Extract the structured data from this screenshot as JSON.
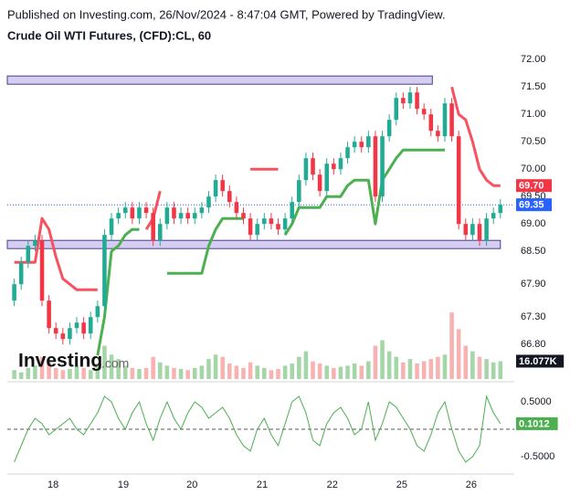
{
  "header": {
    "published": "Published on Investing.com, 26/Nov/2024 - 8:47:04 GMT, Powered by TradingView.",
    "title": "Crude Oil WTI Futures, (CFD):CL, 60"
  },
  "logo": {
    "main": "Investing",
    "suffix": ".com"
  },
  "chart_data": [
    {
      "type": "candlestick",
      "categories": [
        null,
        null,
        null,
        null,
        null,
        null,
        null,
        null,
        null,
        null,
        null,
        null,
        null,
        null,
        null,
        null,
        null,
        null,
        null,
        null,
        null,
        null,
        null,
        null,
        null,
        null,
        null,
        null,
        null,
        null,
        null,
        null,
        null,
        null,
        null,
        null,
        null,
        null,
        null,
        null,
        null,
        null,
        null,
        null,
        null,
        null,
        null,
        null,
        null,
        null,
        null,
        null,
        null,
        null,
        null,
        null,
        null,
        null,
        null,
        null,
        null,
        null,
        null,
        null,
        null,
        null,
        null,
        null,
        null,
        null,
        null
      ],
      "xlim": [
        -1,
        72
      ],
      "xticks": [
        {
          "value": 5.6,
          "label": "18"
        },
        {
          "value": 15.7,
          "label": "19"
        },
        {
          "value": 25.6,
          "label": "20"
        },
        {
          "value": 35.7,
          "label": "21"
        },
        {
          "value": 45.8,
          "label": "22"
        },
        {
          "value": 55.8,
          "label": "25"
        },
        {
          "value": 65.8,
          "label": "26"
        }
      ],
      "ylim": [
        66.17,
        72.17
      ],
      "yticks": [
        {
          "value": 72.0,
          "label": "72.00"
        },
        {
          "value": 71.5,
          "label": "71.50"
        },
        {
          "value": 71.0,
          "label": "71.00"
        },
        {
          "value": 70.5,
          "label": "70.50"
        },
        {
          "value": 70.0,
          "label": "70.00"
        },
        {
          "value": 69.5,
          "label": "69.50"
        },
        {
          "value": 69.0,
          "label": "69.00"
        },
        {
          "value": 68.5,
          "label": "68.50"
        },
        {
          "value": 67.9,
          "label": "67.90"
        },
        {
          "value": 67.3,
          "label": "67.30"
        },
        {
          "value": 66.8,
          "label": "66.80"
        }
      ],
      "open": [
        67.6,
        67.9,
        68.3,
        68.6,
        68.7,
        67.6,
        67.1,
        67.0,
        66.9,
        67.1,
        67.2,
        67.0,
        67.3,
        67.5,
        68.8,
        69.1,
        69.2,
        69.3,
        69.1,
        69.3,
        69.2,
        68.7,
        69.0,
        69.3,
        69.1,
        69.2,
        69.1,
        69.2,
        69.3,
        69.5,
        69.8,
        69.6,
        69.4,
        69.2,
        69.1,
        68.8,
        69.0,
        69.1,
        69.0,
        68.9,
        69.1,
        69.4,
        69.8,
        70.2,
        69.9,
        69.6,
        70.1,
        70.0,
        70.2,
        70.4,
        70.5,
        70.4,
        70.6,
        69.5,
        70.6,
        70.9,
        71.3,
        71.2,
        71.4,
        71.1,
        71.0,
        70.7,
        70.6,
        71.2,
        70.6,
        69.0,
        68.8,
        69.0,
        68.7,
        69.1,
        69.2
      ],
      "high": [
        68.0,
        68.4,
        68.7,
        68.8,
        68.8,
        67.7,
        67.2,
        67.1,
        67.2,
        67.3,
        67.3,
        67.4,
        67.6,
        68.9,
        69.2,
        69.3,
        69.4,
        69.4,
        69.4,
        69.4,
        69.3,
        69.1,
        69.4,
        69.4,
        69.3,
        69.3,
        69.3,
        69.4,
        69.6,
        69.9,
        69.9,
        69.7,
        69.5,
        69.3,
        69.2,
        69.1,
        69.2,
        69.2,
        69.1,
        69.2,
        69.5,
        69.9,
        70.3,
        70.3,
        70.0,
        70.2,
        70.2,
        70.3,
        70.5,
        70.6,
        70.6,
        70.7,
        70.7,
        70.7,
        71.0,
        71.4,
        71.4,
        71.5,
        71.5,
        71.2,
        71.1,
        70.8,
        71.3,
        71.3,
        70.7,
        69.1,
        69.1,
        69.1,
        69.2,
        69.3,
        69.45
      ],
      "low": [
        67.5,
        67.8,
        68.2,
        68.5,
        67.5,
        67.0,
        66.9,
        66.8,
        66.8,
        67.0,
        66.9,
        66.9,
        67.2,
        67.4,
        68.7,
        69.0,
        69.1,
        69.0,
        69.0,
        69.1,
        68.6,
        68.6,
        68.9,
        69.0,
        69.0,
        69.0,
        69.0,
        69.1,
        69.2,
        69.4,
        69.5,
        69.3,
        69.1,
        69.0,
        68.7,
        68.7,
        68.9,
        68.9,
        68.8,
        68.8,
        69.0,
        69.3,
        69.7,
        69.8,
        69.5,
        69.5,
        69.9,
        69.9,
        70.1,
        70.3,
        70.3,
        70.3,
        69.4,
        69.4,
        70.5,
        70.8,
        71.1,
        71.1,
        71.0,
        70.9,
        70.6,
        70.5,
        70.5,
        70.5,
        68.9,
        68.7,
        68.7,
        68.6,
        68.6,
        69.0,
        69.1
      ],
      "close": [
        67.9,
        68.3,
        68.6,
        68.7,
        67.6,
        67.1,
        67.0,
        66.9,
        67.1,
        67.2,
        67.0,
        67.3,
        67.5,
        68.8,
        69.1,
        69.2,
        69.3,
        69.1,
        69.3,
        69.2,
        68.7,
        69.0,
        69.3,
        69.1,
        69.2,
        69.1,
        69.2,
        69.3,
        69.5,
        69.8,
        69.6,
        69.4,
        69.2,
        69.1,
        68.8,
        69.0,
        69.1,
        69.0,
        68.9,
        69.1,
        69.4,
        69.8,
        70.2,
        69.9,
        69.6,
        70.1,
        70.0,
        70.2,
        70.4,
        70.5,
        70.4,
        70.6,
        69.5,
        70.6,
        70.9,
        71.3,
        71.2,
        71.4,
        71.1,
        71.0,
        70.7,
        70.6,
        71.2,
        70.6,
        69.0,
        68.8,
        69.0,
        68.7,
        69.1,
        69.2,
        69.35
      ],
      "up_color": "#22ab94",
      "down_color": "#f23645",
      "overlays": [
        {
          "color": "#f7525f",
          "values": [
            68.3,
            68.3,
            68.3,
            68.3,
            69.1,
            68.9,
            68.4,
            68.0,
            67.9,
            67.8,
            67.8,
            67.8,
            67.8,
            null,
            null,
            null,
            null,
            null,
            null,
            68.9,
            69.1,
            69.6,
            null,
            null,
            null,
            null,
            null,
            null,
            null,
            null,
            null,
            null,
            null,
            null,
            70.0,
            70.0,
            70.0,
            70.0,
            70.0,
            null,
            null,
            null,
            null,
            null,
            null,
            null,
            null,
            null,
            null,
            null,
            null,
            null,
            null,
            null,
            null,
            null,
            null,
            null,
            null,
            null,
            null,
            null,
            null,
            71.5,
            71.0,
            70.9,
            70.5,
            70.0,
            69.8,
            69.7,
            69.7
          ]
        },
        {
          "color": "#4caf50",
          "values": [
            null,
            null,
            null,
            null,
            null,
            null,
            null,
            null,
            null,
            null,
            null,
            null,
            66.6,
            67.3,
            68.5,
            68.6,
            68.8,
            68.9,
            68.9,
            null,
            null,
            null,
            68.1,
            68.1,
            68.1,
            68.1,
            68.1,
            68.1,
            68.6,
            68.9,
            69.1,
            69.1,
            69.1,
            69.1,
            null,
            null,
            null,
            null,
            null,
            68.8,
            69.0,
            69.3,
            69.3,
            69.3,
            69.3,
            69.5,
            69.5,
            69.5,
            69.7,
            69.8,
            69.8,
            69.8,
            69.0,
            69.8,
            70.0,
            70.2,
            70.35,
            70.35,
            70.35,
            70.35,
            70.35,
            70.35,
            70.35,
            null,
            null,
            null,
            null,
            null,
            null,
            null,
            null
          ]
        }
      ],
      "zones": [
        {
          "x": [
            -1,
            60.2
          ],
          "y": [
            71.55,
            71.7
          ]
        },
        {
          "x": [
            -1,
            70
          ],
          "y": [
            68.55,
            68.7
          ]
        }
      ],
      "volume": {
        "ylim": [
          0,
          70
        ],
        "up_color": "#a5d6a7",
        "down_color": "#f8b2b2",
        "values": [
          8,
          6,
          10,
          12,
          20,
          15,
          10,
          8,
          9,
          12,
          10,
          8,
          14,
          30,
          22,
          18,
          12,
          10,
          9,
          10,
          20,
          15,
          12,
          10,
          9,
          8,
          10,
          12,
          18,
          22,
          20,
          14,
          12,
          10,
          15,
          12,
          10,
          8,
          9,
          12,
          14,
          20,
          25,
          16,
          14,
          12,
          10,
          11,
          12,
          14,
          12,
          16,
          30,
          35,
          25,
          20,
          15,
          18,
          14,
          16,
          18,
          20,
          22,
          60,
          45,
          30,
          25,
          20,
          18,
          15,
          16.077
        ],
        "last_label": {
          "value": 16.077,
          "label": "16.077K",
          "color": "#131722"
        }
      },
      "price_labels": [
        {
          "value": 69.7,
          "label": "69.70",
          "color": "#f23645"
        },
        {
          "value": 69.35,
          "label": "69.35",
          "color": "#2962ff"
        }
      ]
    },
    {
      "type": "line",
      "ylim": [
        -0.8,
        0.833
      ],
      "yticks": [
        {
          "value": 0.5,
          "label": "0.5000"
        },
        {
          "value": -0.5,
          "label": "-0.5000"
        }
      ],
      "baseline": 0,
      "color": "#4caf50",
      "values": [
        -0.6,
        -0.3,
        0.0,
        0.2,
        0.1,
        -0.1,
        0.0,
        0.1,
        0.2,
        0.0,
        -0.1,
        0.1,
        0.3,
        0.6,
        0.5,
        0.2,
        0.0,
        0.3,
        0.5,
        0.1,
        -0.2,
        0.2,
        0.5,
        0.2,
        0.0,
        0.3,
        0.5,
        0.4,
        0.2,
        0.3,
        0.4,
        0.2,
        -0.1,
        -0.3,
        -0.4,
        0.0,
        0.2,
        -0.1,
        -0.3,
        0.1,
        0.5,
        0.6,
        0.3,
        -0.2,
        -0.3,
        0.1,
        0.3,
        0.4,
        0.2,
        -0.1,
        0.0,
        0.5,
        -0.2,
        0.1,
        0.5,
        0.4,
        0.2,
        0.0,
        -0.3,
        -0.4,
        -0.1,
        0.3,
        0.5,
        0.0,
        -0.4,
        -0.6,
        -0.5,
        -0.3,
        0.6,
        0.3,
        0.1012
      ],
      "last_label": {
        "value": 0.1012,
        "label": "0.1012",
        "color": "#4caf50"
      }
    }
  ]
}
